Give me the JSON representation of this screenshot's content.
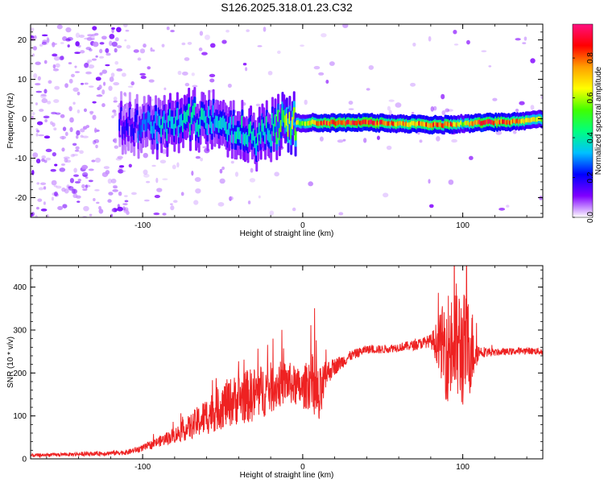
{
  "title": "S126.2025.318.01.23.C32",
  "chart_data": [
    {
      "type": "heatmap",
      "name": "spectrogram",
      "xlabel": "Height of straight line (km)",
      "ylabel": "Frequency (Hz)",
      "xlim": [
        -170,
        150
      ],
      "ylim": [
        -25,
        24
      ],
      "xticks": [
        -100,
        0,
        100
      ],
      "xtick_labels": [
        "-100",
        "0",
        "100"
      ],
      "yticks": [
        -20,
        -10,
        0,
        10,
        20
      ],
      "ytick_labels": [
        "-20",
        "-10",
        "0",
        "10",
        "20"
      ],
      "colorbar": {
        "label": "Normalized spectral amplitude",
        "range": [
          0.0,
          0.97
        ],
        "ticks": [
          0.0,
          0.2,
          0.4,
          0.6,
          0.8
        ],
        "tick_labels": [
          "0.0",
          "0.2",
          "0.4",
          "0.6",
          "0.8"
        ],
        "colors": [
          "#ffffff",
          "#8000ff",
          "#0000ff",
          "#00c0ff",
          "#00ff80",
          "#40ff00",
          "#ffff00",
          "#ffa000",
          "#ff0000",
          "#ff1080"
        ]
      },
      "signal_band": [
        {
          "x": -110,
          "f": -1.5,
          "amp": 0.2
        },
        {
          "x": -90,
          "f": -2.0,
          "amp": 0.35
        },
        {
          "x": -70,
          "f": -0.5,
          "amp": 0.4
        },
        {
          "x": -55,
          "f": 0.5,
          "amp": 0.35
        },
        {
          "x": -40,
          "f": -3.0,
          "amp": 0.4
        },
        {
          "x": -30,
          "f": -5.0,
          "amp": 0.4
        },
        {
          "x": -20,
          "f": -2.5,
          "amp": 0.4
        },
        {
          "x": -10,
          "f": -1.0,
          "amp": 0.6
        },
        {
          "x": 0,
          "f": -1.0,
          "amp": 0.6
        },
        {
          "x": 10,
          "f": -1.0,
          "amp": 0.85
        },
        {
          "x": 40,
          "f": -1.0,
          "amp": 0.9
        },
        {
          "x": 60,
          "f": -1.2,
          "amp": 0.75
        },
        {
          "x": 75,
          "f": -1.5,
          "amp": 0.8
        },
        {
          "x": 90,
          "f": -1.5,
          "amp": 0.85
        },
        {
          "x": 100,
          "f": -1.2,
          "amp": 0.6
        },
        {
          "x": 110,
          "f": -1.0,
          "amp": 0.9
        },
        {
          "x": 130,
          "f": -0.8,
          "amp": 0.8
        },
        {
          "x": 150,
          "f": 0.0,
          "amp": 0.6
        }
      ]
    },
    {
      "type": "line",
      "name": "snr",
      "xlabel": "Height of straight line (km)",
      "ylabel": "SNR (10 * v/v)",
      "xlim": [
        -170,
        150
      ],
      "ylim": [
        0,
        450
      ],
      "xticks": [
        -100,
        0,
        100
      ],
      "xtick_labels": [
        "-100",
        "0",
        "100"
      ],
      "yticks": [
        0,
        100,
        200,
        300,
        400
      ],
      "ytick_labels": [
        "0",
        "100",
        "200",
        "300",
        "400"
      ],
      "series": [
        {
          "name": "SNR",
          "color": "#ee2222",
          "x": [
            -170,
            -150,
            -130,
            -110,
            -100,
            -90,
            -80,
            -70,
            -60,
            -50,
            -40,
            -30,
            -20,
            -10,
            0,
            5,
            10,
            15,
            20,
            30,
            40,
            50,
            60,
            70,
            80,
            85,
            90,
            95,
            100,
            105,
            110,
            120,
            130,
            140,
            150
          ],
          "y": [
            8,
            10,
            12,
            15,
            25,
            40,
            55,
            75,
            100,
            125,
            140,
            150,
            165,
            180,
            160,
            185,
            130,
            200,
            215,
            240,
            255,
            255,
            260,
            265,
            275,
            270,
            260,
            270,
            255,
            260,
            250,
            248,
            250,
            252,
            250
          ],
          "noise": [
            4,
            4,
            5,
            6,
            8,
            12,
            18,
            30,
            45,
            55,
            60,
            65,
            60,
            50,
            45,
            70,
            80,
            30,
            20,
            12,
            10,
            10,
            10,
            12,
            15,
            60,
            130,
            150,
            140,
            110,
            15,
            8,
            8,
            8,
            8
          ]
        }
      ]
    }
  ]
}
